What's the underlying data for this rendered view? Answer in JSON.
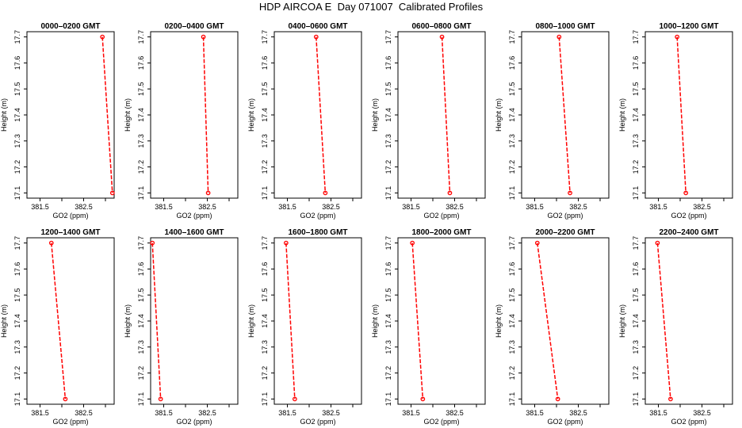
{
  "title": "HDP AIRCOA E  Day 071007  Calibrated Profiles",
  "colors": {
    "line": "#ff0000",
    "marker": "#ff0000",
    "axis": "#000000"
  },
  "chart_data": {
    "type": "line",
    "series_style": "dashed line with open circle markers",
    "xlabel": "GO2 (ppm)",
    "ylabel": "Height (m)",
    "xlim": [
      381.2,
      383.2
    ],
    "ylim": [
      17.08,
      17.72
    ],
    "x_ticks": [
      "381.5",
      "382.5"
    ],
    "x_tick_values": [
      381.5,
      382,
      382.5,
      383
    ],
    "y_ticks": [
      "17.1",
      "17.2",
      "17.3",
      "17.4",
      "17.5",
      "17.6",
      "17.7"
    ],
    "y_tick_values": [
      17.1,
      17.2,
      17.3,
      17.4,
      17.5,
      17.6,
      17.7
    ],
    "panels": [
      {
        "title": "0000–0200 GMT",
        "points": [
          {
            "x": 382.93,
            "y": 17.7
          },
          {
            "x": 383.16,
            "y": 17.1
          }
        ]
      },
      {
        "title": "0200–0400 GMT",
        "points": [
          {
            "x": 382.41,
            "y": 17.7
          },
          {
            "x": 382.52,
            "y": 17.1
          }
        ]
      },
      {
        "title": "0400–0600 GMT",
        "points": [
          {
            "x": 382.16,
            "y": 17.7
          },
          {
            "x": 382.37,
            "y": 17.1
          }
        ]
      },
      {
        "title": "0600–0800 GMT",
        "points": [
          {
            "x": 382.21,
            "y": 17.7
          },
          {
            "x": 382.39,
            "y": 17.1
          }
        ]
      },
      {
        "title": "0800–1000 GMT",
        "points": [
          {
            "x": 382.06,
            "y": 17.7
          },
          {
            "x": 382.31,
            "y": 17.1
          }
        ]
      },
      {
        "title": "1000–1200 GMT",
        "points": [
          {
            "x": 381.93,
            "y": 17.7
          },
          {
            "x": 382.13,
            "y": 17.1
          }
        ]
      },
      {
        "title": "1200–1400 GMT",
        "points": [
          {
            "x": 381.76,
            "y": 17.7
          },
          {
            "x": 382.08,
            "y": 17.1
          }
        ]
      },
      {
        "title": "1400–1600 GMT",
        "points": [
          {
            "x": 381.24,
            "y": 17.7
          },
          {
            "x": 381.43,
            "y": 17.1
          }
        ]
      },
      {
        "title": "1600–1800 GMT",
        "points": [
          {
            "x": 381.47,
            "y": 17.7
          },
          {
            "x": 381.67,
            "y": 17.1
          }
        ]
      },
      {
        "title": "1800–2000 GMT",
        "points": [
          {
            "x": 381.53,
            "y": 17.7
          },
          {
            "x": 381.77,
            "y": 17.1
          }
        ]
      },
      {
        "title": "2000–2200 GMT",
        "points": [
          {
            "x": 381.56,
            "y": 17.7
          },
          {
            "x": 382.03,
            "y": 17.1
          }
        ]
      },
      {
        "title": "2200–2400 GMT",
        "points": [
          {
            "x": 381.48,
            "y": 17.7
          },
          {
            "x": 381.78,
            "y": 17.1
          }
        ]
      }
    ]
  }
}
